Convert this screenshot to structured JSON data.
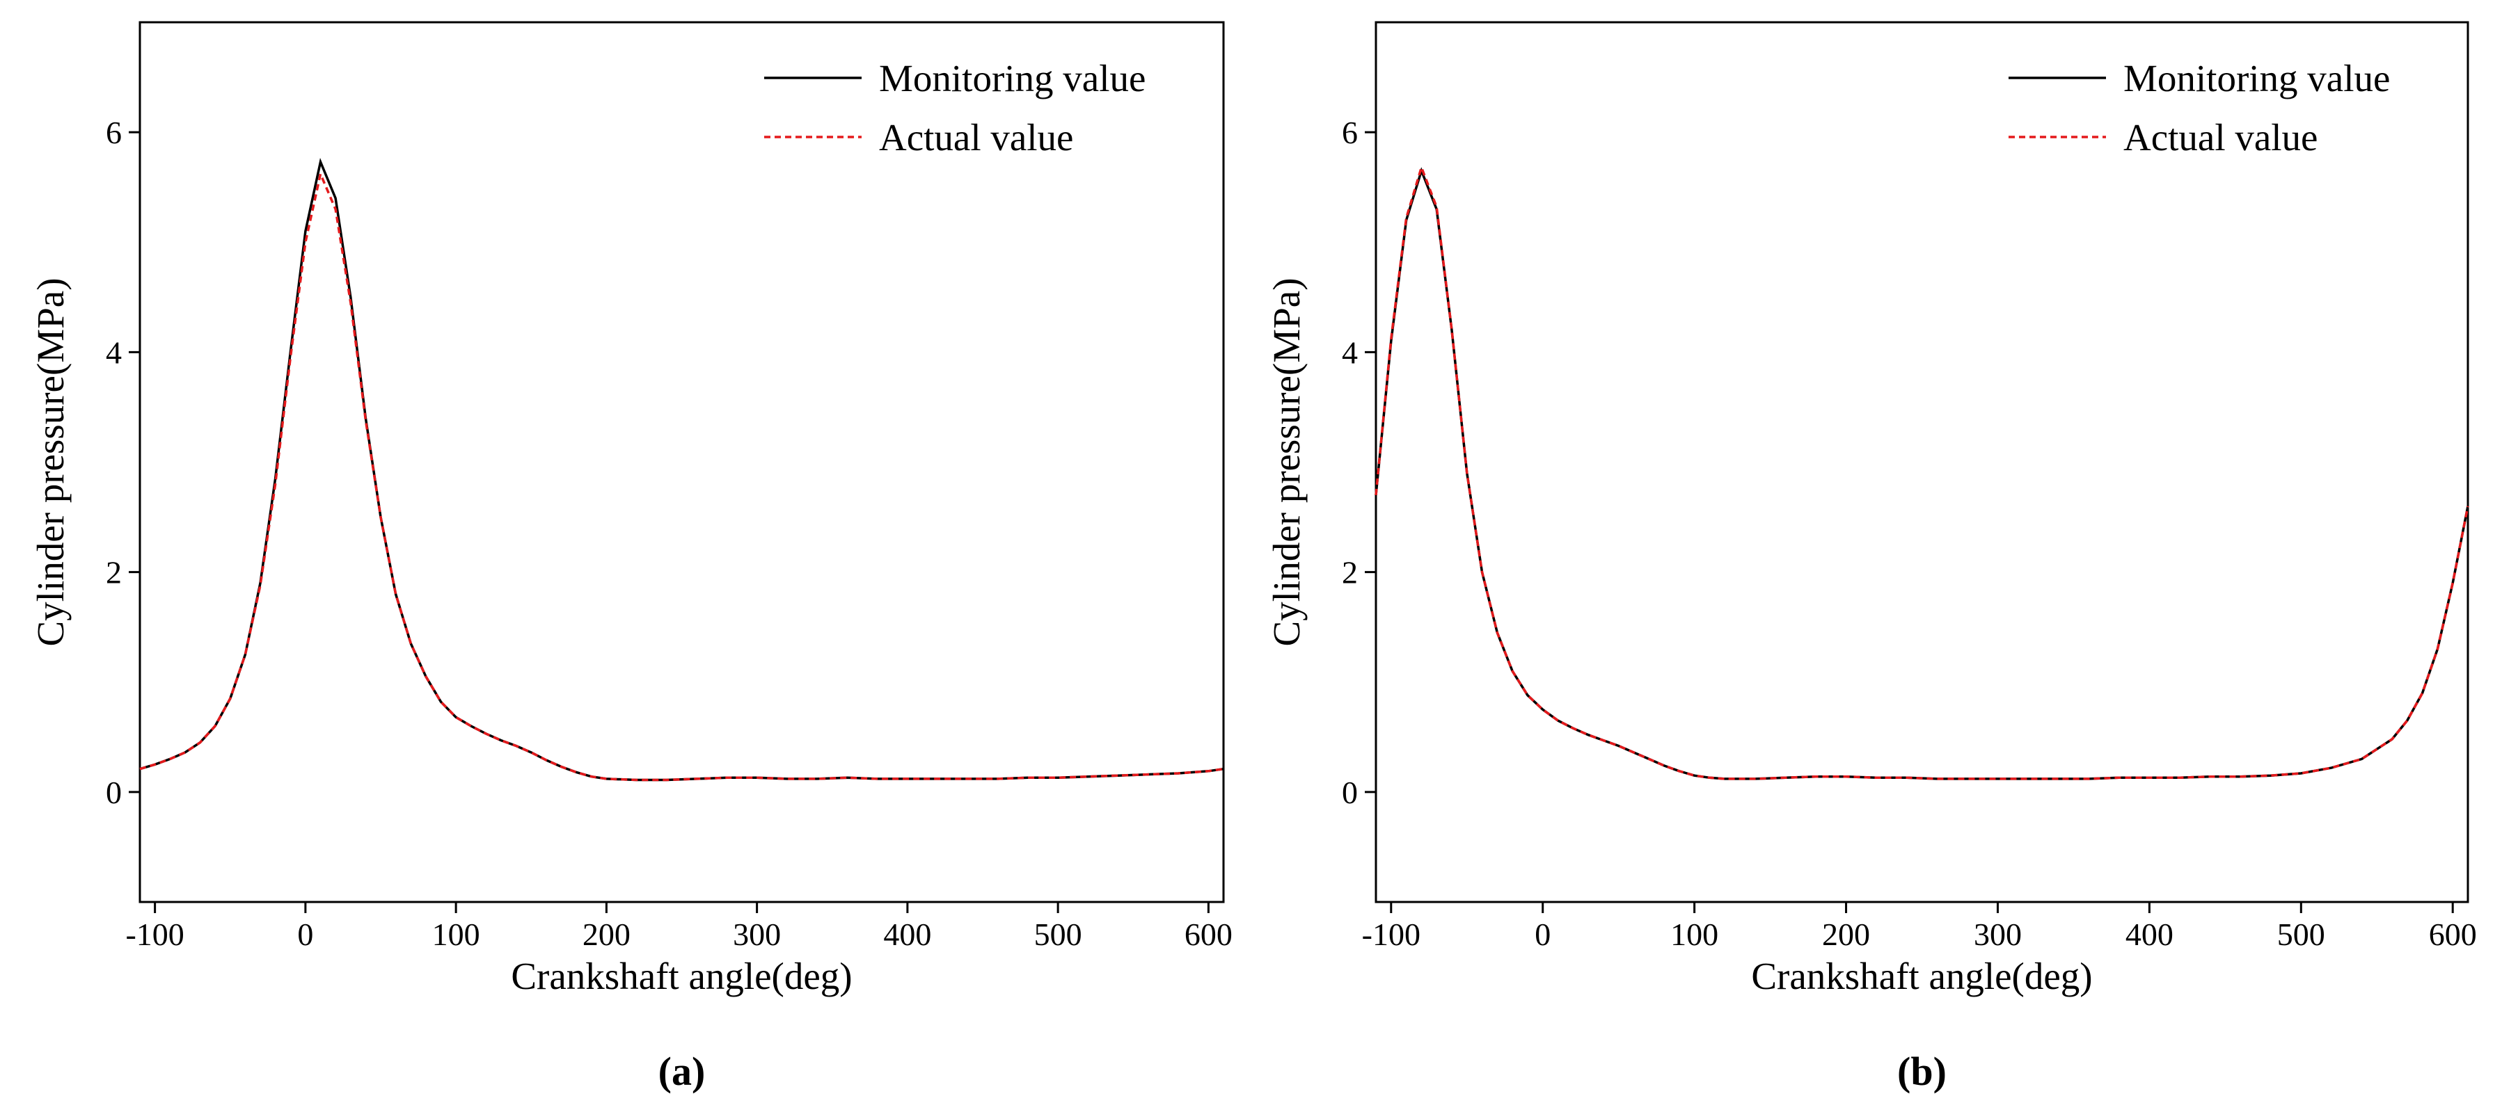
{
  "chart_data": [
    {
      "type": "line",
      "label": "(a)",
      "x_label": "Crankshaft angle(deg)",
      "y_label": "Cylinder pressure(MPa)",
      "xlim": [
        -110,
        610
      ],
      "ylim": [
        -1,
        7
      ],
      "xticks": [
        -100,
        0,
        100,
        200,
        300,
        400,
        500,
        600
      ],
      "yticks": [
        0,
        2,
        4,
        6
      ],
      "legend": "upper right",
      "x": [
        -110,
        -100,
        -90,
        -80,
        -70,
        -60,
        -50,
        -40,
        -30,
        -20,
        -10,
        0,
        10,
        20,
        30,
        40,
        50,
        60,
        70,
        80,
        90,
        100,
        110,
        120,
        130,
        140,
        150,
        160,
        170,
        180,
        190,
        200,
        220,
        240,
        260,
        280,
        300,
        320,
        340,
        360,
        380,
        400,
        420,
        440,
        460,
        480,
        500,
        520,
        540,
        560,
        580,
        600,
        610
      ],
      "series": [
        {
          "name": "Monitoring value",
          "color": "#000000",
          "dash": false,
          "values": [
            0.21,
            0.25,
            0.3,
            0.36,
            0.45,
            0.6,
            0.85,
            1.25,
            1.9,
            2.85,
            4.0,
            5.1,
            5.73,
            5.4,
            4.5,
            3.4,
            2.5,
            1.8,
            1.35,
            1.05,
            0.82,
            0.68,
            0.6,
            0.53,
            0.47,
            0.42,
            0.36,
            0.29,
            0.23,
            0.18,
            0.14,
            0.12,
            0.11,
            0.11,
            0.12,
            0.13,
            0.13,
            0.12,
            0.12,
            0.13,
            0.12,
            0.12,
            0.12,
            0.12,
            0.12,
            0.13,
            0.13,
            0.14,
            0.15,
            0.16,
            0.17,
            0.19,
            0.21
          ]
        },
        {
          "name": "Actual value",
          "color": "#e41a1c",
          "dash": true,
          "values": [
            0.21,
            0.25,
            0.3,
            0.36,
            0.45,
            0.6,
            0.85,
            1.25,
            1.88,
            2.8,
            3.95,
            5.0,
            5.62,
            5.3,
            4.45,
            3.38,
            2.5,
            1.8,
            1.35,
            1.05,
            0.82,
            0.68,
            0.6,
            0.53,
            0.47,
            0.42,
            0.36,
            0.29,
            0.23,
            0.18,
            0.14,
            0.12,
            0.11,
            0.11,
            0.12,
            0.13,
            0.13,
            0.12,
            0.12,
            0.13,
            0.12,
            0.12,
            0.12,
            0.12,
            0.12,
            0.13,
            0.13,
            0.14,
            0.15,
            0.16,
            0.17,
            0.19,
            0.21
          ]
        }
      ]
    },
    {
      "type": "line",
      "label": "(b)",
      "x_label": "Crankshaft angle(deg)",
      "y_label": "Cylinder pressure(MPa)",
      "xlim": [
        -110,
        610
      ],
      "ylim": [
        -1,
        7
      ],
      "xticks": [
        -100,
        0,
        100,
        200,
        300,
        400,
        500,
        600
      ],
      "yticks": [
        0,
        2,
        4,
        6
      ],
      "legend": "upper right",
      "x": [
        -110,
        -100,
        -90,
        -80,
        -70,
        -60,
        -50,
        -40,
        -30,
        -20,
        -10,
        0,
        10,
        20,
        30,
        40,
        50,
        60,
        70,
        80,
        90,
        100,
        110,
        120,
        140,
        160,
        180,
        200,
        220,
        240,
        260,
        280,
        300,
        320,
        340,
        360,
        380,
        400,
        420,
        440,
        460,
        480,
        500,
        520,
        540,
        560,
        570,
        580,
        590,
        600,
        610
      ],
      "series": [
        {
          "name": "Monitoring value",
          "color": "#000000",
          "dash": false,
          "values": [
            2.7,
            4.1,
            5.2,
            5.65,
            5.3,
            4.2,
            2.9,
            2.0,
            1.45,
            1.1,
            0.88,
            0.75,
            0.65,
            0.58,
            0.52,
            0.47,
            0.42,
            0.36,
            0.3,
            0.24,
            0.19,
            0.15,
            0.13,
            0.12,
            0.12,
            0.13,
            0.14,
            0.14,
            0.13,
            0.13,
            0.12,
            0.12,
            0.12,
            0.12,
            0.12,
            0.12,
            0.13,
            0.13,
            0.13,
            0.14,
            0.14,
            0.15,
            0.17,
            0.22,
            0.3,
            0.48,
            0.65,
            0.9,
            1.3,
            1.9,
            2.6
          ]
        },
        {
          "name": "Actual value",
          "color": "#e41a1c",
          "dash": true,
          "values": [
            2.7,
            4.12,
            5.22,
            5.68,
            5.32,
            4.2,
            2.9,
            2.0,
            1.45,
            1.1,
            0.88,
            0.75,
            0.65,
            0.58,
            0.52,
            0.47,
            0.42,
            0.36,
            0.3,
            0.24,
            0.19,
            0.15,
            0.13,
            0.12,
            0.12,
            0.13,
            0.14,
            0.14,
            0.13,
            0.13,
            0.12,
            0.12,
            0.12,
            0.12,
            0.12,
            0.12,
            0.13,
            0.13,
            0.13,
            0.14,
            0.14,
            0.15,
            0.17,
            0.22,
            0.3,
            0.48,
            0.65,
            0.9,
            1.3,
            1.9,
            2.6
          ]
        }
      ]
    }
  ]
}
